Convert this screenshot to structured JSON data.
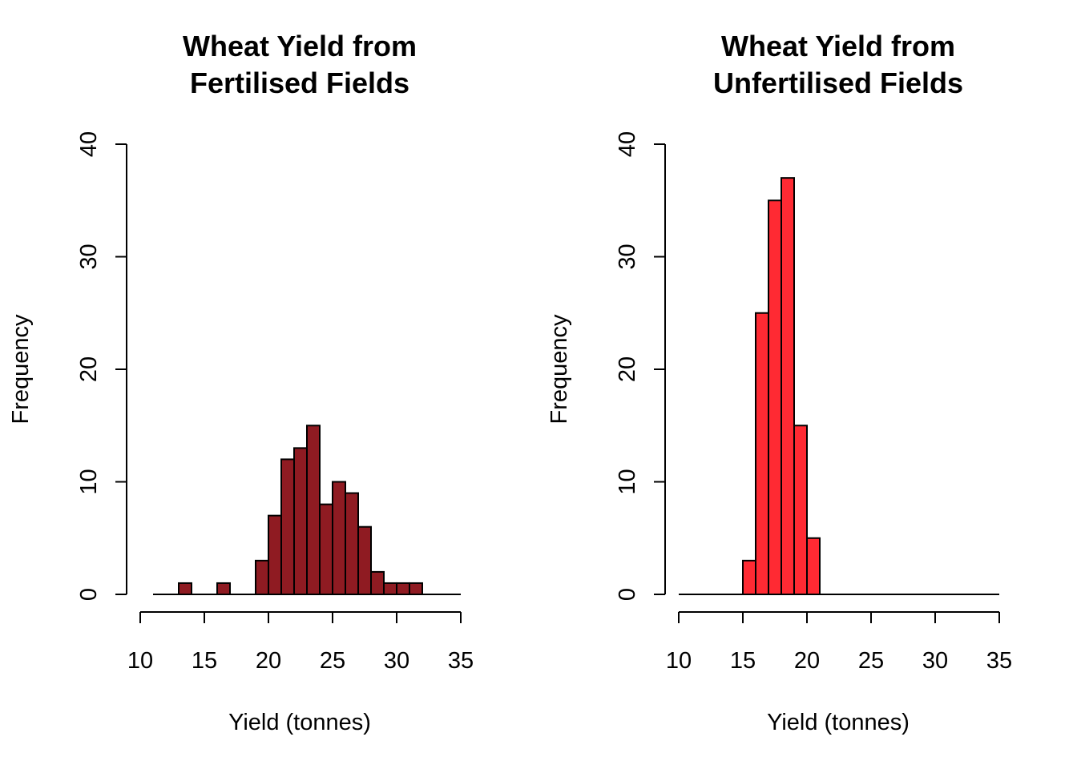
{
  "chart_data": [
    {
      "type": "bar",
      "title_lines": [
        "Wheat Yield from",
        "Fertilised Fields"
      ],
      "xlabel": "Yield (tonnes)",
      "ylabel": "Frequency",
      "color": "#8f1b22",
      "xlim": [
        10,
        35
      ],
      "ylim": [
        0,
        40
      ],
      "x_ticks": [
        "10",
        "15",
        "20",
        "25",
        "30",
        "35"
      ],
      "y_ticks": [
        "0",
        "10",
        "20",
        "30",
        "40"
      ],
      "bin_width": 1,
      "bin_starts": [
        11,
        12,
        13,
        14,
        15,
        16,
        17,
        18,
        19,
        20,
        21,
        22,
        23,
        24,
        25,
        26,
        27,
        28,
        29,
        30,
        31,
        32,
        33,
        34
      ],
      "values": [
        0,
        0,
        1,
        0,
        0,
        1,
        0,
        0,
        3,
        7,
        12,
        13,
        15,
        8,
        10,
        9,
        6,
        2,
        1,
        1,
        1,
        0,
        0,
        0
      ]
    },
    {
      "type": "bar",
      "title_lines": [
        "Wheat Yield from",
        "Unfertilised Fields"
      ],
      "xlabel": "Yield (tonnes)",
      "ylabel": "Frequency",
      "color": "#ff2a33",
      "xlim": [
        10,
        35
      ],
      "ylim": [
        0,
        40
      ],
      "x_ticks": [
        "10",
        "15",
        "20",
        "25",
        "30",
        "35"
      ],
      "y_ticks": [
        "0",
        "10",
        "20",
        "30",
        "40"
      ],
      "bin_width": 1,
      "bin_starts": [
        10,
        11,
        12,
        13,
        14,
        15,
        16,
        17,
        18,
        19,
        20,
        21,
        22,
        23,
        24,
        25,
        26,
        27,
        28,
        29,
        30,
        31,
        32,
        33,
        34
      ],
      "values": [
        0,
        0,
        0,
        0,
        0,
        3,
        25,
        35,
        37,
        15,
        5,
        0,
        0,
        0,
        0,
        0,
        0,
        0,
        0,
        0,
        0,
        0,
        0,
        0,
        0
      ]
    }
  ]
}
